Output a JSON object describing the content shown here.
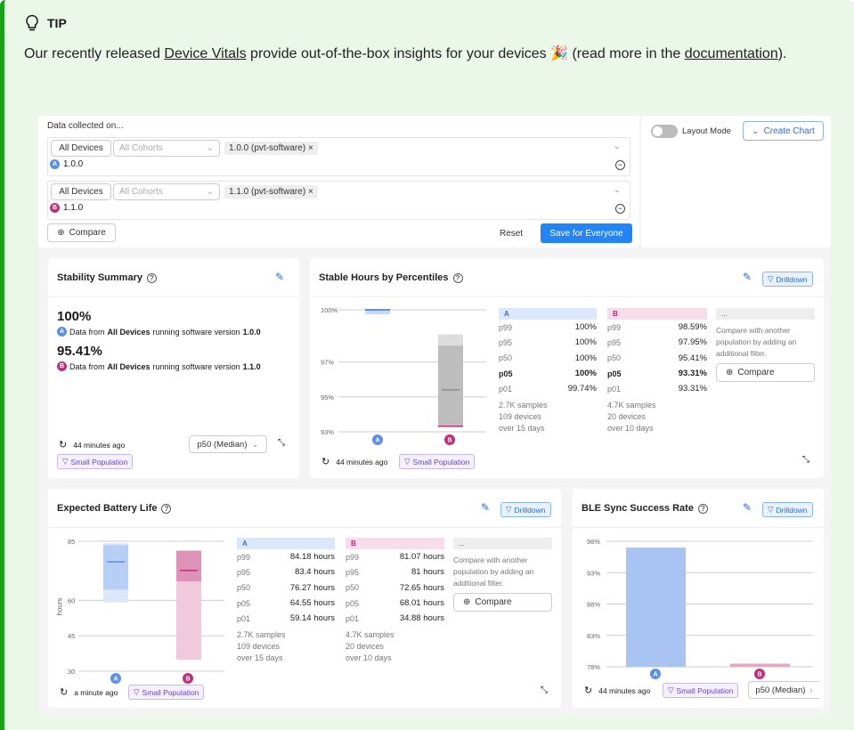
{
  "tip": {
    "label": "TIP",
    "text_before": "Our recently released ",
    "link1": "Device Vitals",
    "text_middle": " provide out-of-the-box insights for your devices 🎉 (read more in the ",
    "link2": "documentation",
    "text_after": ")."
  },
  "filters": {
    "heading": "Data collected on...",
    "rows": [
      {
        "group": "All Devices",
        "cohort_placeholder": "All Cohorts",
        "chip": "1.0.0 (pvt-software)",
        "tag": "A",
        "value": "1.0.0"
      },
      {
        "group": "All Devices",
        "cohort_placeholder": "All Cohorts",
        "chip": "1.1.0 (pvt-software)",
        "tag": "B",
        "value": "1.1.0"
      }
    ],
    "compare": "Compare",
    "reset": "Reset",
    "save": "Save for Everyone",
    "layout_mode": "Layout Mode",
    "create_chart": "Create Chart"
  },
  "stability": {
    "title": "Stability Summary",
    "a_value": "100%",
    "a_prefix": "Data from ",
    "a_strong": "All Devices",
    "a_mid": " running software version ",
    "a_version": "1.0.0",
    "b_value": "95.41%",
    "b_prefix": "Data from ",
    "b_strong": "All Devices",
    "b_mid": " running software version ",
    "b_version": "1.1.0",
    "time": "44 minutes ago",
    "select": "p50 (Median)",
    "badge": "Small Population"
  },
  "stable_hours": {
    "title": "Stable Hours by Percentiles",
    "drilldown": "Drilldown",
    "time": "44 minutes ago",
    "badge": "Small Population",
    "yticks": [
      "100%",
      "97%",
      "95%",
      "93%"
    ],
    "col_a": {
      "label": "A",
      "rows": [
        [
          "p99",
          "100%"
        ],
        [
          "p95",
          "100%"
        ],
        [
          "p50",
          "100%"
        ],
        [
          "p05",
          "100%"
        ],
        [
          "p01",
          "99.74%"
        ]
      ],
      "samples": "2.7K samples",
      "devices": "109 devices",
      "days": "over 15 days"
    },
    "col_b": {
      "label": "B",
      "rows": [
        [
          "p99",
          "98.59%"
        ],
        [
          "p95",
          "97.95%"
        ],
        [
          "p50",
          "95.41%"
        ],
        [
          "p05",
          "93.31%"
        ],
        [
          "p01",
          "93.31%"
        ]
      ],
      "samples": "4.7K samples",
      "devices": "20 devices",
      "days": "over 10 days"
    },
    "col_c": {
      "label": "...",
      "text": "Compare with another population by adding an additional filter.",
      "compare": "Compare"
    }
  },
  "battery": {
    "title": "Expected Battery Life",
    "drilldown": "Drilldown",
    "ylabel": "hours",
    "yticks": [
      "85",
      "60",
      "45",
      "30"
    ],
    "time": "a minute ago",
    "badge": "Small Population",
    "col_a": {
      "label": "A",
      "rows": [
        [
          "p99",
          "84.18 hours"
        ],
        [
          "p95",
          "83.4 hours"
        ],
        [
          "p50",
          "76.27 hours"
        ],
        [
          "p05",
          "64.55 hours"
        ],
        [
          "p01",
          "59.14 hours"
        ]
      ],
      "samples": "2.7K samples",
      "devices": "109 devices",
      "days": "over 15 days"
    },
    "col_b": {
      "label": "B",
      "rows": [
        [
          "p99",
          "81.07 hours"
        ],
        [
          "p95",
          "81 hours"
        ],
        [
          "p50",
          "72.65 hours"
        ],
        [
          "p05",
          "68.01 hours"
        ],
        [
          "p01",
          "34.88 hours"
        ]
      ],
      "samples": "4.7K samples",
      "devices": "20 devices",
      "days": "over 10 days"
    },
    "col_c": {
      "label": "...",
      "text": "Compare with another population by adding an additional filter.",
      "compare": "Compare"
    }
  },
  "ble": {
    "title": "BLE Sync Success Rate",
    "drilldown": "Drilldown",
    "yticks": [
      "98%",
      "93%",
      "88%",
      "83%",
      "78%"
    ],
    "time": "44 minutes ago",
    "badge": "Small Population",
    "select": "p50 (Median)"
  },
  "chart_data": [
    {
      "type": "bar",
      "title": "Stable Hours by Percentiles",
      "categories": [
        "A",
        "B"
      ],
      "ylim": [
        93,
        100
      ],
      "series": [
        {
          "name": "p50",
          "values": [
            100,
            95.41
          ]
        },
        {
          "name": "p05",
          "values": [
            100,
            93.31
          ]
        },
        {
          "name": "p95",
          "values": [
            100,
            97.95
          ]
        }
      ]
    },
    {
      "type": "bar",
      "title": "Expected Battery Life",
      "ylabel": "hours",
      "categories": [
        "A",
        "B"
      ],
      "ylim": [
        30,
        85
      ],
      "series": [
        {
          "name": "p50",
          "values": [
            76.27,
            72.65
          ]
        },
        {
          "name": "p01",
          "values": [
            59.14,
            34.88
          ]
        },
        {
          "name": "p99",
          "values": [
            84.18,
            81.07
          ]
        }
      ]
    },
    {
      "type": "bar",
      "title": "BLE Sync Success Rate",
      "categories": [
        "A",
        "B"
      ],
      "ylim": [
        78,
        98
      ],
      "series": [
        {
          "name": "p50",
          "values": [
            97,
            78.5
          ]
        }
      ]
    }
  ],
  "colors": {
    "accent": "#2384f5",
    "tip_border": "#16a31a",
    "series_a": "#5d8fe6",
    "series_b": "#c0307a"
  }
}
